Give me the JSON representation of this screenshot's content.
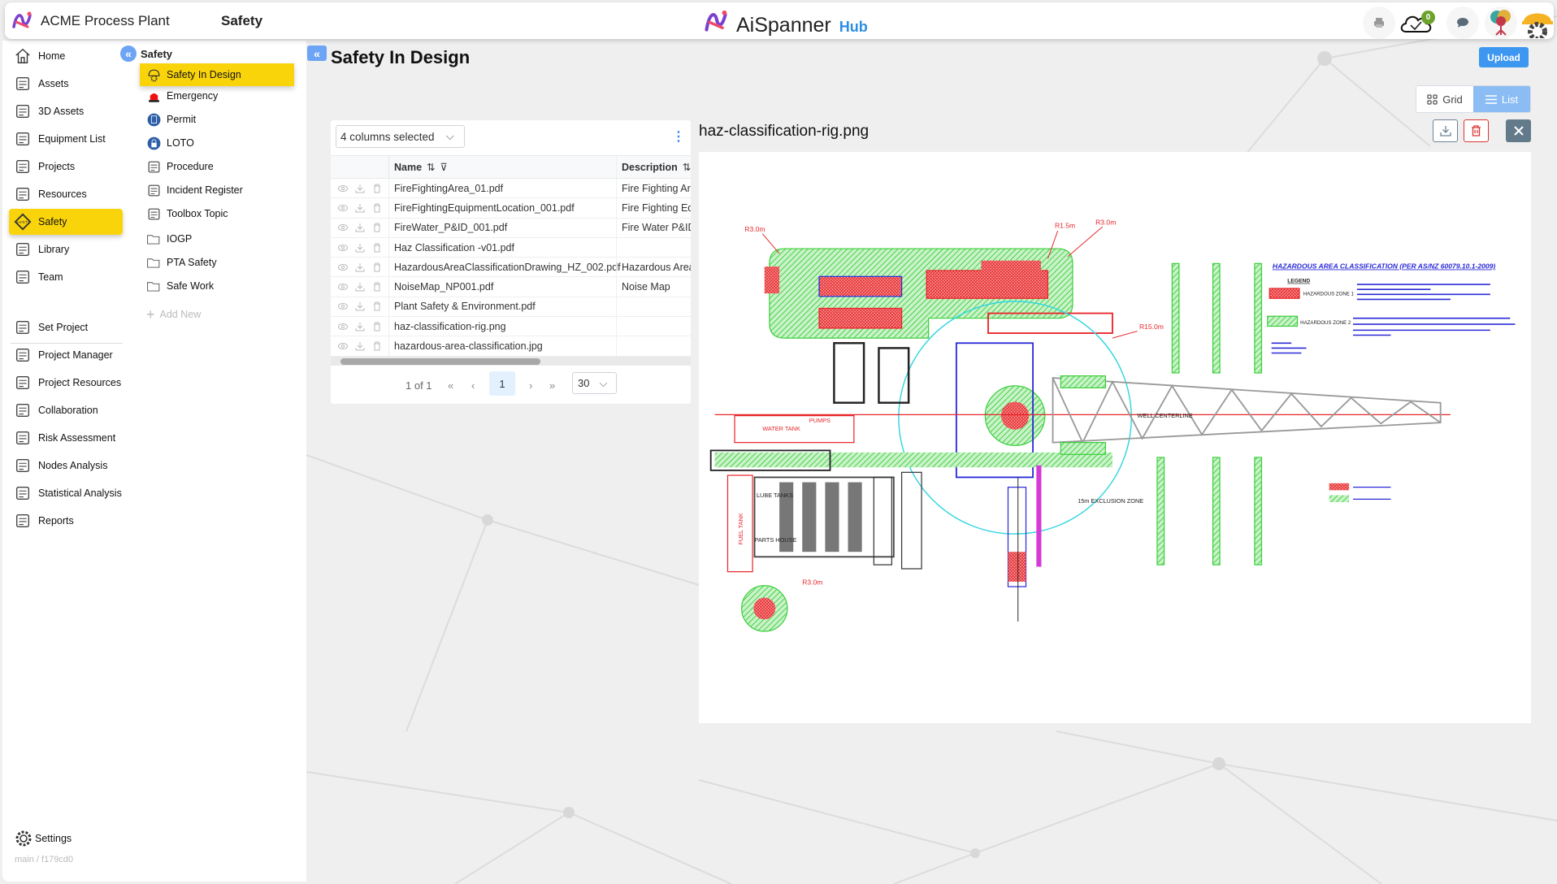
{
  "header": {
    "plant_name": "ACME Process Plant",
    "section": "Safety",
    "brand": "AiSpanner",
    "brand_suffix": "Hub",
    "sync_count": "0",
    "icons": [
      "app-logo-icon",
      "printer-icon",
      "cloud-check-icon",
      "chat-icon",
      "brain-tree-avatar",
      "helmet-gear-avatar"
    ]
  },
  "sidebar": {
    "items": [
      {
        "label": "Home",
        "icon": "home-icon"
      },
      {
        "label": "Assets",
        "icon": "plant-icon"
      },
      {
        "label": "3D Assets",
        "icon": "cube-icon"
      },
      {
        "label": "Equipment List",
        "icon": "pump-icon"
      },
      {
        "label": "Projects",
        "icon": "worker-icon"
      },
      {
        "label": "Resources",
        "icon": "toolbox-icon"
      },
      {
        "label": "Safety",
        "icon": "safety-sign-icon",
        "active": true
      },
      {
        "label": "Library",
        "icon": "books-icon"
      },
      {
        "label": "Team",
        "icon": "team-icon"
      }
    ],
    "items2": [
      {
        "label": "Set Project",
        "icon": "shuffle-icon"
      },
      {
        "label": "Project Manager",
        "icon": "manager-icon"
      },
      {
        "label": "Project Resources",
        "icon": "resources-icon"
      },
      {
        "label": "Collaboration",
        "icon": "collaboration-icon"
      },
      {
        "label": "Risk Assessment",
        "icon": "warning-icon"
      },
      {
        "label": "Nodes Analysis",
        "icon": "nodes-icon"
      },
      {
        "label": "Statistical Analysis",
        "icon": "chart-icon"
      },
      {
        "label": "Reports",
        "icon": "report-icon"
      }
    ],
    "settings_label": "Settings",
    "version": "main / f179cd0"
  },
  "subnav": {
    "title": "Safety",
    "items": [
      {
        "label": "Safety In Design",
        "icon": "helmet-icon",
        "active": true
      },
      {
        "label": "Emergency",
        "icon": "siren-icon"
      },
      {
        "label": "Permit",
        "icon": "permit-icon"
      },
      {
        "label": "LOTO",
        "icon": "lock-icon"
      },
      {
        "label": "Procedure",
        "icon": "procedure-icon"
      },
      {
        "label": "Incident Register",
        "icon": "incident-icon"
      },
      {
        "label": "Toolbox Topic",
        "icon": "toolbox-topic-icon"
      },
      {
        "label": "IOGP",
        "icon": "folder-icon"
      },
      {
        "label": "PTA Safety",
        "icon": "folder-icon"
      },
      {
        "label": "Safe Work",
        "icon": "folder-icon"
      }
    ],
    "add_new": "Add New"
  },
  "main": {
    "title": "Safety In Design",
    "upload_label": "Upload",
    "view_grid": "Grid",
    "view_list": "List",
    "view_active": "List"
  },
  "table": {
    "columns_selected": "4 columns selected",
    "headers": {
      "name": "Name",
      "description": "Description"
    },
    "rows": [
      {
        "name": "FireFightingArea_01.pdf",
        "description": "Fire Fighting Are"
      },
      {
        "name": "FireFightingEquipmentLocation_001.pdf",
        "description": "Fire Fighting Eq"
      },
      {
        "name": "FireWater_P&ID_001.pdf",
        "description": "Fire Water P&ID"
      },
      {
        "name": "Haz Classification -v01.pdf",
        "description": ""
      },
      {
        "name": "HazardousAreaClassificationDrawing_HZ_002.pdf",
        "description": "Hazardous Area"
      },
      {
        "name": "NoiseMap_NP001.pdf",
        "description": "Noise Map"
      },
      {
        "name": "Plant Safety & Environment.pdf",
        "description": ""
      },
      {
        "name": "haz-classification-rig.png",
        "description": ""
      },
      {
        "name": "hazardous-area-classification.jpg",
        "description": ""
      }
    ],
    "pager": {
      "summary": "1 of 1",
      "current": "1",
      "page_size": "30"
    }
  },
  "preview": {
    "filename": "haz-classification-rig.png",
    "drawing_title": "HAZARDOUS AREA CLASSIFICATION  (PER AS/NZ 60079.10.1-2009)",
    "legend": "LEGEND",
    "zone1": "HAZARDOUS ZONE 1",
    "zone2": "HAZARDOUS ZONE 2",
    "labels": {
      "water_tank": "WATER TANK",
      "pumps": "PUMPS",
      "fuel_tank": "FUEL TANK",
      "lube": "LUBE TANKS",
      "parts": "PARTS HOUSE",
      "exclusion": "15m  EXCLUSION ZONE",
      "well": "WELL CENTERLINE",
      "r30": "R3.0m",
      "r15": "R1.5m",
      "r150": "R15.0m"
    },
    "colors": {
      "zone1": "#e8262a",
      "zone2": "#3ccf3c",
      "annot": "#2a2ad8",
      "exclusion": "#33d6e0"
    }
  }
}
